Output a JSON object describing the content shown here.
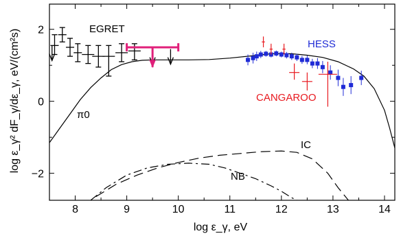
{
  "chart_data": {
    "type": "scatter",
    "xlabel": "log ε_γ, eV",
    "ylabel": "log ε_γ² dF_γ/dε_γ, eV/(cm²s)",
    "xlim": [
      7.5,
      14.2
    ],
    "ylim": [
      -2.75,
      2.7
    ],
    "xticks": [
      8,
      9,
      10,
      11,
      12,
      13,
      14
    ],
    "yticks": [
      -2,
      0,
      2
    ],
    "grid": false,
    "annotations": {
      "egret": "EGRET",
      "hess": "HESS",
      "cangaroo": "CANGAROO",
      "pi0": "π0",
      "ic": "IC",
      "nb": "NB"
    },
    "colors": {
      "egret": "#000000",
      "hess": "#1f2bd6",
      "cangaroo": "#e8191f",
      "upper_limit": "#e0207a",
      "model": "#000000"
    },
    "series": [
      {
        "name": "EGRET",
        "marker": "error-bar",
        "points": [
          {
            "x": 7.6,
            "y": 1.55,
            "xerr": 0.08,
            "ylo": 1.3,
            "yhi": 1.85
          },
          {
            "x": 7.75,
            "y": 1.85,
            "xerr": 0.08,
            "ylo": 1.65,
            "yhi": 2.05
          },
          {
            "x": 7.9,
            "y": 1.5,
            "xerr": 0.08,
            "ylo": 1.25,
            "yhi": 1.75
          },
          {
            "x": 8.05,
            "y": 1.35,
            "xerr": 0.08,
            "ylo": 1.1,
            "yhi": 1.6
          },
          {
            "x": 8.25,
            "y": 1.3,
            "xerr": 0.12,
            "ylo": 1.05,
            "yhi": 1.55
          },
          {
            "x": 8.45,
            "y": 1.25,
            "xerr": 0.12,
            "ylo": 0.95,
            "yhi": 1.55
          },
          {
            "x": 8.65,
            "y": 1.25,
            "xerr": 0.12,
            "ylo": 0.7,
            "yhi": 1.55
          },
          {
            "x": 8.9,
            "y": 1.35,
            "xerr": 0.12,
            "ylo": 1.1,
            "yhi": 1.6
          },
          {
            "x": 9.15,
            "y": 1.4,
            "xerr": 0.12,
            "ylo": 1.15,
            "yhi": 1.6
          }
        ]
      },
      {
        "name": "EGRET upper limits",
        "marker": "down-arrow",
        "points": [
          {
            "x": 7.55,
            "y": 1.55
          },
          {
            "x": 9.5,
            "y": 1.45
          },
          {
            "x": 9.85,
            "y": 1.45
          }
        ]
      },
      {
        "name": "upper limit bar",
        "marker": "magenta-bar",
        "points": [
          {
            "x": 9.5,
            "y": 1.5,
            "xlo": 9.0,
            "xhi": 10.0,
            "ylo": 0.95,
            "yhi": 1.5
          }
        ]
      },
      {
        "name": "HESS",
        "marker": "square",
        "points": [
          {
            "x": 11.35,
            "y": 1.15,
            "ylo": 1.0,
            "yhi": 1.3
          },
          {
            "x": 11.45,
            "y": 1.2,
            "ylo": 1.05,
            "yhi": 1.35
          },
          {
            "x": 11.52,
            "y": 1.25,
            "ylo": 1.12,
            "yhi": 1.38
          },
          {
            "x": 11.6,
            "y": 1.3,
            "ylo": 1.2,
            "yhi": 1.4
          },
          {
            "x": 11.7,
            "y": 1.32,
            "ylo": 1.24,
            "yhi": 1.4
          },
          {
            "x": 11.8,
            "y": 1.3,
            "ylo": 1.22,
            "yhi": 1.38
          },
          {
            "x": 11.9,
            "y": 1.33,
            "ylo": 1.25,
            "yhi": 1.41
          },
          {
            "x": 12.0,
            "y": 1.3,
            "ylo": 1.22,
            "yhi": 1.38
          },
          {
            "x": 12.1,
            "y": 1.28,
            "ylo": 1.19,
            "yhi": 1.37
          },
          {
            "x": 12.2,
            "y": 1.25,
            "ylo": 1.15,
            "yhi": 1.35
          },
          {
            "x": 12.3,
            "y": 1.22,
            "ylo": 1.12,
            "yhi": 1.32
          },
          {
            "x": 12.4,
            "y": 1.15,
            "ylo": 1.04,
            "yhi": 1.26
          },
          {
            "x": 12.5,
            "y": 1.15,
            "ylo": 1.03,
            "yhi": 1.27
          },
          {
            "x": 12.6,
            "y": 1.05,
            "ylo": 0.92,
            "yhi": 1.18
          },
          {
            "x": 12.7,
            "y": 1.05,
            "ylo": 0.9,
            "yhi": 1.2
          },
          {
            "x": 12.8,
            "y": 0.95,
            "ylo": 0.78,
            "yhi": 1.12
          },
          {
            "x": 12.95,
            "y": 0.8,
            "ylo": 0.6,
            "yhi": 1.0
          },
          {
            "x": 13.1,
            "y": 0.65,
            "ylo": 0.42,
            "yhi": 0.88
          },
          {
            "x": 13.2,
            "y": 0.4,
            "ylo": 0.15,
            "yhi": 0.65
          },
          {
            "x": 13.35,
            "y": 0.45,
            "ylo": 0.2,
            "yhi": 0.7
          },
          {
            "x": 13.55,
            "y": 0.65,
            "ylo": 0.45,
            "yhi": 0.85
          }
        ]
      },
      {
        "name": "CANGAROO",
        "marker": "cross",
        "points": [
          {
            "x": 11.65,
            "y": 1.65,
            "xerr": 0.03,
            "ylo": 1.5,
            "yhi": 1.8
          },
          {
            "x": 11.8,
            "y": 1.45,
            "xerr": 0.03,
            "ylo": 1.3,
            "yhi": 1.6
          },
          {
            "x": 12.05,
            "y": 1.45,
            "xerr": 0.03,
            "ylo": 1.3,
            "yhi": 1.6
          },
          {
            "x": 12.25,
            "y": 0.8,
            "xerr": 0.1,
            "ylo": 0.6,
            "yhi": 1.05
          },
          {
            "x": 12.5,
            "y": 0.55,
            "xerr": 0.1,
            "ylo": 0.3,
            "yhi": 0.8
          },
          {
            "x": 12.9,
            "y": 0.75,
            "xerr": 0.18,
            "ylo": -0.15,
            "yhi": 1.1
          }
        ]
      }
    ],
    "curves": [
      {
        "name": "π0",
        "style": "solid",
        "x": [
          7.5,
          7.7,
          7.9,
          8.1,
          8.3,
          8.5,
          8.7,
          8.9,
          9.1,
          9.3,
          9.5,
          9.8,
          10.2,
          10.6,
          11.0,
          11.4,
          11.8,
          12.2,
          12.5,
          12.8,
          13.1,
          13.4,
          13.6,
          13.8,
          14.0,
          14.1,
          14.2
        ],
        "y": [
          -1.15,
          -0.75,
          -0.35,
          0.05,
          0.38,
          0.65,
          0.88,
          1.02,
          1.1,
          1.14,
          1.15,
          1.15,
          1.15,
          1.16,
          1.2,
          1.26,
          1.32,
          1.32,
          1.28,
          1.22,
          1.1,
          0.9,
          0.7,
          0.35,
          -0.25,
          -0.75,
          -1.3
        ]
      },
      {
        "name": "IC",
        "style": "dashed",
        "x": [
          8.4,
          8.8,
          9.2,
          9.6,
          10.0,
          10.4,
          10.8,
          11.2,
          11.6,
          12.0,
          12.3,
          12.6,
          12.9,
          13.1,
          13.3
        ],
        "y": [
          -2.65,
          -2.3,
          -2.05,
          -1.85,
          -1.7,
          -1.58,
          -1.5,
          -1.45,
          -1.4,
          -1.38,
          -1.42,
          -1.6,
          -2.0,
          -2.4,
          -2.75
        ]
      },
      {
        "name": "NB",
        "style": "dashdot",
        "x": [
          8.3,
          8.6,
          9.0,
          9.4,
          9.8,
          10.2,
          10.6,
          10.9,
          11.2,
          11.5,
          11.8,
          12.0,
          12.2,
          12.3
        ],
        "y": [
          -2.75,
          -2.4,
          -2.05,
          -1.85,
          -1.75,
          -1.72,
          -1.75,
          -1.85,
          -2.0,
          -2.15,
          -2.35,
          -2.5,
          -2.68,
          -2.75
        ]
      }
    ]
  }
}
